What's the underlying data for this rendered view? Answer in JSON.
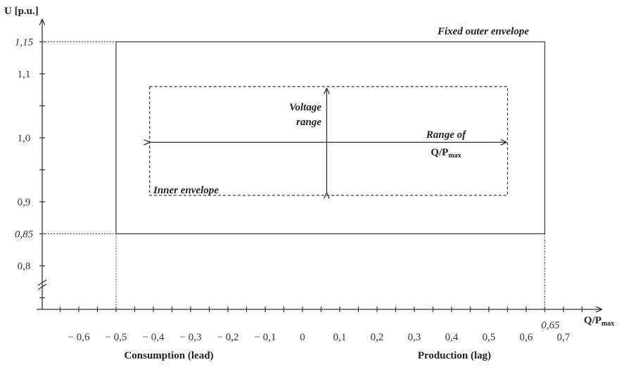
{
  "y_axis": {
    "title": "U [p.u.]",
    "tick_labels": [
      {
        "text": "1,15",
        "value": 1.15,
        "italic": true
      },
      {
        "text": "1,1",
        "value": 1.1,
        "italic": false
      },
      {
        "text": "1,0",
        "value": 1.0,
        "italic": false
      },
      {
        "text": "0,9",
        "value": 0.9,
        "italic": false
      },
      {
        "text": "0,85",
        "value": 0.85,
        "italic": true
      },
      {
        "text": "0,8",
        "value": 0.8,
        "italic": false
      }
    ]
  },
  "x_axis": {
    "title_main": "Q/P",
    "title_sub": "max",
    "tick_labels": [
      {
        "text": "− 0,6",
        "value": -0.6
      },
      {
        "text": "− 0,5",
        "value": -0.5
      },
      {
        "text": "− 0,4",
        "value": -0.4
      },
      {
        "text": "− 0,3",
        "value": -0.3
      },
      {
        "text": "− 0,2",
        "value": -0.2
      },
      {
        "text": "− 0,1",
        "value": -0.1
      },
      {
        "text": "0",
        "value": 0
      },
      {
        "text": "0,1",
        "value": 0.1
      },
      {
        "text": "0,2",
        "value": 0.2
      },
      {
        "text": "0,3",
        "value": 0.3
      },
      {
        "text": "0,4",
        "value": 0.4
      },
      {
        "text": "0,5",
        "value": 0.5
      },
      {
        "text": "0,6",
        "value": 0.6
      },
      {
        "text": "0,7",
        "value": 0.7
      }
    ],
    "special_label": {
      "text": "0,65",
      "value": 0.65
    },
    "consumption_label": "Consumption (lead)",
    "production_label": "Production (lag)"
  },
  "annotations": {
    "outer_envelope": "Fixed outer envelope",
    "inner_envelope": "Inner envelope",
    "voltage_range_line1": "Voltage",
    "voltage_range_line2": "range",
    "q_range_line1": "Range of",
    "q_range_line2_main": "Q/P",
    "q_range_line2_sub": "max"
  },
  "envelopes": {
    "outer": {
      "q_min": -0.5,
      "q_max": 0.65,
      "u_min": 0.85,
      "u_max": 1.15
    },
    "inner": {
      "q_min": -0.41,
      "q_max": 0.55,
      "u_min": 0.91,
      "u_max": 1.08
    }
  },
  "arrows": {
    "voltage_range": {
      "q": 0.065,
      "u_min": 0.91,
      "u_max": 1.08
    },
    "q_range": {
      "u": 0.993,
      "q_min": -0.4,
      "q_max": 0.55
    }
  },
  "colors": {
    "line": "#333333",
    "text": "#222222"
  }
}
